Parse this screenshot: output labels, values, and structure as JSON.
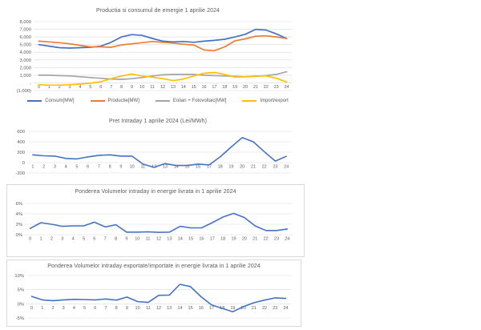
{
  "colors": {
    "grid": "#D9D9D9",
    "text": "#595959",
    "title": "#595959",
    "box_border": "#D9D9D9",
    "background": "#FFFFFF",
    "series_blue": "#4472C4",
    "series_orange": "#ED7D31",
    "series_gray": "#A5A5A5",
    "series_yellow": "#FFC000"
  },
  "chart_data": [
    {
      "type": "line",
      "title": "Productia si consumul de emergie 1 aprilie 2024",
      "categories": [
        "0",
        "1",
        "2",
        "3",
        "4",
        "5",
        "6",
        "7",
        "8",
        "9",
        "10",
        "11",
        "12",
        "13",
        "14",
        "15",
        "16",
        "17",
        "18",
        "19",
        "20",
        "21",
        "22",
        "23",
        "24"
      ],
      "ylim": [
        -1000,
        8000
      ],
      "grid": true,
      "legend_position": "bottom",
      "yticks": [
        {
          "v": 8000,
          "label": "8,000"
        },
        {
          "v": 7000,
          "label": "7,000"
        },
        {
          "v": 6000,
          "label": "6,000"
        },
        {
          "v": 5000,
          "label": "5,000"
        },
        {
          "v": 4000,
          "label": "4,000"
        },
        {
          "v": 3000,
          "label": "3,000"
        },
        {
          "v": 2000,
          "label": "2,000"
        },
        {
          "v": 1000,
          "label": "1,000"
        },
        {
          "v": 0,
          "label": "-"
        },
        {
          "v": -1000,
          "label": "(1,000)"
        }
      ],
      "series": [
        {
          "name": "Consum[MW]",
          "color": "#4472C4",
          "values": [
            5000,
            4800,
            4600,
            4550,
            4600,
            4650,
            4800,
            5300,
            6000,
            6300,
            6200,
            5800,
            5450,
            5350,
            5400,
            5300,
            5450,
            5550,
            5700,
            6000,
            6350,
            7000,
            6900,
            6400,
            5800
          ]
        },
        {
          "name": "Productie[MW]",
          "color": "#ED7D31",
          "values": [
            5450,
            5350,
            5250,
            5100,
            4900,
            4700,
            4700,
            4650,
            4950,
            5100,
            5250,
            5400,
            5300,
            5200,
            5050,
            4950,
            4300,
            4200,
            4700,
            5500,
            5750,
            6100,
            6150,
            6000,
            5800
          ]
        },
        {
          "name": "Eolian + Fotovoltaic[MW]",
          "color": "#A5A5A5",
          "values": [
            1000,
            1000,
            950,
            900,
            800,
            700,
            600,
            500,
            450,
            550,
            700,
            900,
            1050,
            1100,
            1100,
            1100,
            1000,
            950,
            900,
            850,
            800,
            850,
            950,
            1100,
            1450
          ]
        },
        {
          "name": "Import/export",
          "color": "#FFC000",
          "values": [
            -250,
            -300,
            -300,
            -250,
            -150,
            -50,
            150,
            550,
            900,
            1150,
            900,
            750,
            550,
            300,
            500,
            900,
            1250,
            1350,
            1100,
            750,
            800,
            900,
            900,
            600,
            100
          ]
        }
      ]
    },
    {
      "type": "line",
      "title": "Pret Intraday 1 aprilie 2024 (Lei/MWh)",
      "categories": [
        "1",
        "2",
        "3",
        "4",
        "5",
        "6",
        "7",
        "8",
        "9",
        "10",
        "11",
        "12",
        "13",
        "14",
        "15",
        "16",
        "17",
        "18",
        "19",
        "20",
        "21",
        "22",
        "23",
        "24"
      ],
      "ylim": [
        -200,
        600
      ],
      "grid": true,
      "yticks": [
        {
          "v": 600,
          "label": "600"
        },
        {
          "v": 400,
          "label": "400"
        },
        {
          "v": 200,
          "label": "200"
        },
        {
          "v": 0,
          "label": "0"
        },
        {
          "v": -200,
          "label": "-200"
        }
      ],
      "color": "#4472C4",
      "values": [
        150,
        130,
        125,
        80,
        70,
        110,
        140,
        150,
        125,
        125,
        -30,
        -90,
        -20,
        -55,
        -55,
        -30,
        -45,
        110,
        300,
        480,
        400,
        210,
        30,
        120
      ]
    },
    {
      "type": "line",
      "title": "Ponderea Volumelor intraday in energie livrata in 1 aprilie 2024",
      "categories": [
        "0",
        "1",
        "2",
        "3",
        "4",
        "5",
        "6",
        "7",
        "8",
        "9",
        "10",
        "11",
        "12",
        "13",
        "14",
        "15",
        "16",
        "17",
        "18",
        "19",
        "20",
        "21",
        "22",
        "23",
        "24"
      ],
      "ylim": [
        0,
        6
      ],
      "grid": true,
      "yticks": [
        {
          "v": 6,
          "label": "6%"
        },
        {
          "v": 4,
          "label": "4%"
        },
        {
          "v": 2,
          "label": "2%"
        },
        {
          "v": 0,
          "label": "0%"
        }
      ],
      "color": "#4472C4",
      "values": [
        1.2,
        2.3,
        2.0,
        1.6,
        1.7,
        1.7,
        2.4,
        1.5,
        1.9,
        0.5,
        0.5,
        0.55,
        0.45,
        0.5,
        1.6,
        1.3,
        1.3,
        2.3,
        3.4,
        4.1,
        3.3,
        1.7,
        0.8,
        0.8,
        1.1
      ]
    },
    {
      "type": "line",
      "title": "Ponderea Volumelor intraday exportate/importate in energie livrata in 1 aprilie 2024",
      "categories": [
        "0",
        "1",
        "2",
        "3",
        "4",
        "5",
        "6",
        "7",
        "8",
        "9",
        "10",
        "11",
        "12",
        "13",
        "14",
        "15",
        "16",
        "17",
        "18",
        "19",
        "20",
        "21",
        "22",
        "23",
        "24"
      ],
      "ylim": [
        -5,
        10
      ],
      "grid": true,
      "yticks": [
        {
          "v": 10,
          "label": "10%"
        },
        {
          "v": 5,
          "label": "5%"
        },
        {
          "v": 0,
          "label": "0%"
        },
        {
          "v": -5,
          "label": "-5%"
        }
      ],
      "color": "#4472C4",
      "values": [
        2.6,
        1.4,
        1.1,
        1.4,
        1.6,
        1.5,
        1.4,
        1.7,
        1.3,
        2.4,
        0.8,
        0.5,
        3.0,
        3.1,
        6.9,
        6.1,
        2.5,
        -0.4,
        -1.6,
        -2.8,
        -1.0,
        0.4,
        1.3,
        2.1,
        1.9
      ]
    }
  ]
}
